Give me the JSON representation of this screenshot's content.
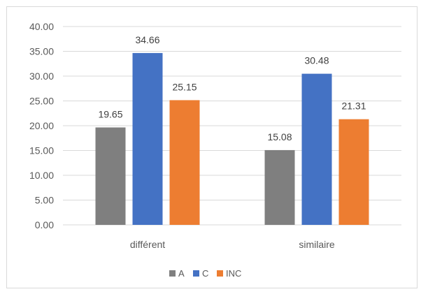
{
  "chart_data": {
    "type": "bar",
    "categories": [
      "différent",
      "similaire"
    ],
    "series": [
      {
        "name": "A",
        "values": [
          19.65,
          15.08
        ],
        "labels": [
          "19.65",
          "15.08"
        ],
        "color": "#7f7f7f"
      },
      {
        "name": "C",
        "values": [
          34.66,
          30.48
        ],
        "labels": [
          "34.66",
          "30.48"
        ],
        "color": "#4472c4"
      },
      {
        "name": "INC",
        "values": [
          25.15,
          21.31
        ],
        "labels": [
          "25.15",
          "21.31"
        ],
        "color": "#ed7d31"
      }
    ],
    "ylim": [
      0,
      40
    ],
    "yticks": [
      "0.00",
      "5.00",
      "10.00",
      "15.00",
      "20.00",
      "25.00",
      "30.00",
      "35.00",
      "40.00"
    ],
    "grid": true,
    "legend_position": "bottom",
    "title": "",
    "xlabel": "",
    "ylabel": ""
  }
}
